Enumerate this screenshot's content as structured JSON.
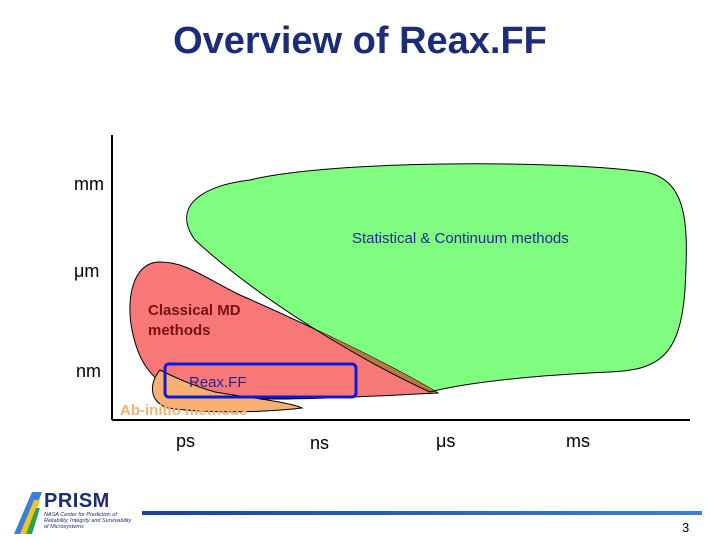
{
  "slide": {
    "title": "Overview of Reax.FF",
    "page_number": "3"
  },
  "axes": {
    "y_ticks": [
      "mm",
      "μm",
      "nm"
    ],
    "x_ticks": [
      "ps",
      "ns",
      "μs",
      "ms"
    ]
  },
  "regions": {
    "statistical": "Statistical & Continuum methods",
    "classical_md": [
      "Classical MD",
      "methods"
    ],
    "reaxff": "Reax.FF",
    "ab_initio": "Ab-initio methods"
  },
  "colors": {
    "title": "#1c2b7a",
    "statistical_fill": "#80fc80",
    "classical_fill": "#f87878",
    "ab_initio_fill": "#f8b070",
    "overlap_fill": "#b87840",
    "reaxff_box": "#0a1ad8",
    "label_blue": "#1a2a9a",
    "label_dark_red": "#7a1010"
  },
  "logo": {
    "name": "PRISM",
    "tagline": "NASA Center for Prediction of Reliability, Integrity and Survivability of Microsystems"
  }
}
